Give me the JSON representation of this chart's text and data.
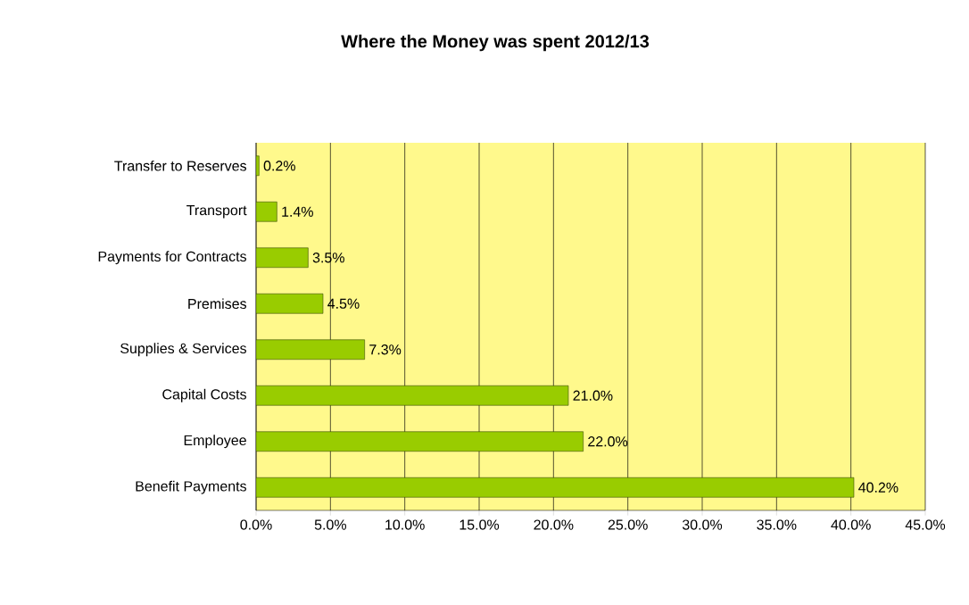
{
  "chart_data": {
    "type": "bar",
    "orientation": "horizontal",
    "title": "Where the Money was spent 2012/13",
    "categories": [
      "Transfer to Reserves",
      "Transport",
      "Payments for Contracts",
      "Premises",
      "Supplies & Services",
      "Capital Costs",
      "Employee",
      "Benefit Payments"
    ],
    "values": [
      0.2,
      1.4,
      3.5,
      4.5,
      7.3,
      21.0,
      22.0,
      40.2
    ],
    "value_labels": [
      "0.2%",
      "1.4%",
      "3.5%",
      "4.5%",
      "7.3%",
      "21.0%",
      "22.0%",
      "40.2%"
    ],
    "color": "#99cc00",
    "xlim": [
      0,
      45
    ],
    "xticks": [
      {
        "value": 0,
        "label": "0.0%"
      },
      {
        "value": 5,
        "label": "5.0%"
      },
      {
        "value": 10,
        "label": "10.0%"
      },
      {
        "value": 15,
        "label": "15.0%"
      },
      {
        "value": 20,
        "label": "20.0%"
      },
      {
        "value": 25,
        "label": "25.0%"
      },
      {
        "value": 30,
        "label": "30.0%"
      },
      {
        "value": 35,
        "label": "35.0%"
      },
      {
        "value": 40,
        "label": "40.0%"
      },
      {
        "value": 45,
        "label": "45.0%"
      }
    ],
    "grid": "x"
  }
}
